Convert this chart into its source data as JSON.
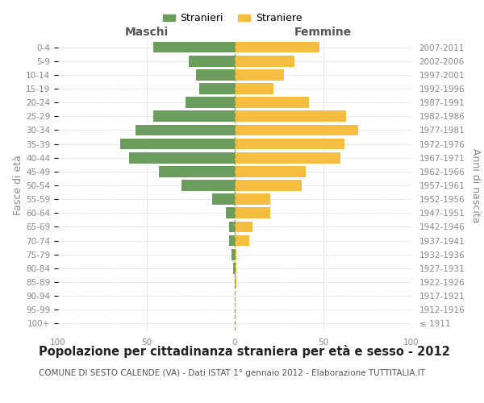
{
  "age_groups": [
    "100+",
    "95-99",
    "90-94",
    "85-89",
    "80-84",
    "75-79",
    "70-74",
    "65-69",
    "60-64",
    "55-59",
    "50-54",
    "45-49",
    "40-44",
    "35-39",
    "30-34",
    "25-29",
    "20-24",
    "15-19",
    "10-14",
    "5-9",
    "0-4"
  ],
  "birth_years": [
    "≤ 1911",
    "1912-1916",
    "1917-1921",
    "1922-1926",
    "1927-1931",
    "1932-1936",
    "1937-1941",
    "1942-1946",
    "1947-1951",
    "1952-1956",
    "1957-1961",
    "1962-1966",
    "1967-1971",
    "1972-1976",
    "1977-1981",
    "1982-1986",
    "1987-1991",
    "1992-1996",
    "1997-2001",
    "2002-2006",
    "2007-2011"
  ],
  "maschi": [
    0,
    0,
    0,
    0,
    1,
    2,
    3,
    3,
    5,
    13,
    30,
    43,
    60,
    65,
    56,
    46,
    28,
    20,
    22,
    26,
    46
  ],
  "femmine": [
    0,
    0,
    0,
    1,
    1,
    1,
    8,
    10,
    20,
    20,
    38,
    40,
    60,
    62,
    70,
    63,
    42,
    22,
    28,
    34,
    48
  ],
  "color_maschi": "#6b9e5e",
  "color_femmine": "#f5be41",
  "title": "Popolazione per cittadinanza straniera per età e sesso - 2012",
  "subtitle": "COMUNE DI SESTO CALENDE (VA) - Dati ISTAT 1° gennaio 2012 - Elaborazione TUTTITALIA.IT",
  "ylabel_left": "Fasce di età",
  "ylabel_right": "Anni di nascita",
  "label_maschi": "Maschi",
  "label_femmine": "Femmine",
  "legend_maschi": "Stranieri",
  "legend_femmine": "Straniere",
  "xlim": [
    -100,
    100
  ],
  "xtick_vals": [
    -100,
    -50,
    0,
    50,
    100
  ],
  "background_color": "#ffffff",
  "grid_color": "#dddddd",
  "bar_height": 0.8,
  "title_fontsize": 10.5,
  "subtitle_fontsize": 7.5,
  "axis_label_fontsize": 9,
  "tick_fontsize": 7.5,
  "header_fontsize": 10,
  "dashed_line_color": "#999900"
}
